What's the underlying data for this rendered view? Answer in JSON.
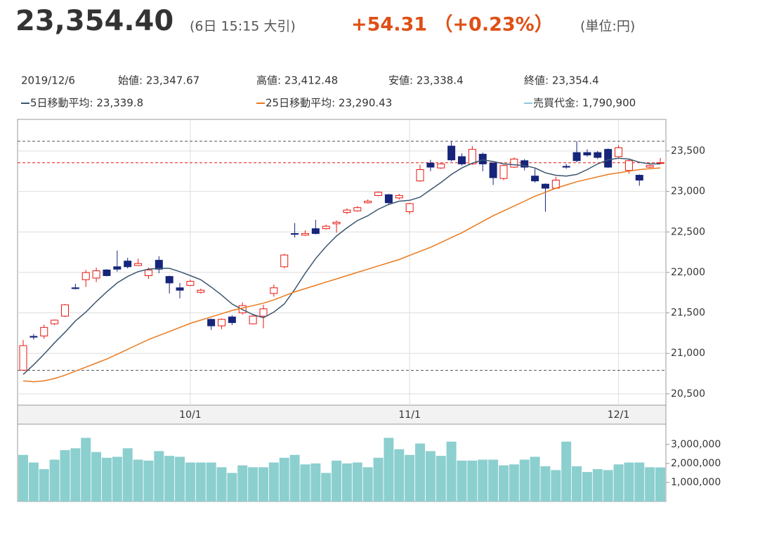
{
  "header": {
    "price": "23,354.40",
    "time": "(6日 15:15 大引)",
    "change": "+54.31 （+0.23%）",
    "unit": "(単位:円)"
  },
  "info": [
    "2019/12/6",
    "始値: 23,347.67",
    "高値: 23,412.48",
    "安値: 23,338.4",
    "終値: 23,354.4"
  ],
  "chart_data": [
    {
      "type": "candlestick",
      "categories": [
        null,
        null,
        null,
        null,
        null,
        null,
        null,
        null,
        null,
        null,
        null,
        null,
        null,
        null,
        null,
        null,
        "10/1",
        null,
        null,
        null,
        null,
        null,
        null,
        null,
        null,
        null,
        null,
        null,
        null,
        null,
        null,
        null,
        null,
        null,
        null,
        null,
        null,
        "11/1",
        null,
        null,
        null,
        null,
        null,
        null,
        null,
        null,
        null,
        null,
        null,
        null,
        null,
        null,
        null,
        null,
        null,
        null,
        null,
        "12/1",
        null,
        null,
        null,
        null
      ],
      "open": [
        20792,
        21210,
        21215,
        21365,
        21460,
        21810,
        21910,
        21930,
        22030,
        22070,
        22140,
        22085,
        21960,
        22150,
        21950,
        21810,
        21840,
        21755,
        21420,
        21340,
        21450,
        21500,
        21365,
        21460,
        21740,
        22070,
        22480,
        22460,
        22540,
        22540,
        22600,
        22740,
        22760,
        22860,
        22950,
        22960,
        22920,
        22750,
        23130,
        23350,
        23290,
        23560,
        23430,
        23340,
        23460,
        23350,
        23160,
        23300,
        23380,
        23190,
        23090,
        23040,
        23310,
        23480,
        23480,
        23480,
        23520,
        23430,
        23260,
        23200,
        23300,
        23347.67
      ],
      "high": [
        21165,
        21240,
        21355,
        21420,
        21610,
        21860,
        22030,
        22060,
        22040,
        22270,
        22180,
        22170,
        22060,
        22200,
        21960,
        21870,
        21910,
        21800,
        21430,
        21430,
        21470,
        21630,
        21480,
        21600,
        21850,
        22230,
        22610,
        22520,
        22650,
        22590,
        22640,
        22790,
        22820,
        22900,
        23000,
        22970,
        22970,
        22860,
        23330,
        23390,
        23350,
        23620,
        23470,
        23560,
        23480,
        23360,
        23330,
        23420,
        23400,
        23280,
        23100,
        23180,
        23340,
        23620,
        23520,
        23500,
        23530,
        23570,
        23400,
        23210,
        23330,
        23412.48
      ],
      "low": [
        20790,
        21170,
        21180,
        21350,
        21450,
        21790,
        21820,
        21880,
        21950,
        22010,
        22050,
        22080,
        21920,
        21990,
        21740,
        21680,
        21830,
        21740,
        21290,
        21300,
        21350,
        21480,
        21360,
        21310,
        21700,
        22050,
        22430,
        22450,
        22470,
        22530,
        22490,
        22720,
        22750,
        22850,
        22940,
        22840,
        22900,
        22720,
        23120,
        23250,
        23280,
        23370,
        23320,
        23330,
        23250,
        23080,
        23140,
        23290,
        23260,
        23110,
        22750,
        23030,
        23280,
        23360,
        23430,
        23400,
        23290,
        23420,
        23220,
        23070,
        23290,
        23338.4
      ],
      "close": [
        21096,
        21200,
        21320,
        21410,
        21600,
        21800,
        21998,
        22020,
        21960,
        22040,
        22070,
        22110,
        22030,
        22040,
        21870,
        21780,
        21890,
        21780,
        21340,
        21420,
        21380,
        21590,
        21460,
        21550,
        21810,
        22215,
        22470,
        22480,
        22480,
        22570,
        22620,
        22770,
        22800,
        22880,
        22990,
        22860,
        22950,
        22850,
        23270,
        23300,
        23340,
        23390,
        23340,
        23520,
        23340,
        23170,
        23320,
        23400,
        23300,
        23130,
        23040,
        23140,
        23300,
        23380,
        23450,
        23420,
        23300,
        23540,
        23380,
        23140,
        23320,
        23354.4
      ],
      "up_color": "#e8170f",
      "down_color": "#16257a",
      "series": [
        {
          "name": "5日移動平均: 23,339.8",
          "color": "#3b5670",
          "values": [
            20740,
            20860,
            20990,
            21130,
            21260,
            21400,
            21510,
            21640,
            21760,
            21870,
            21950,
            22010,
            22040,
            22050,
            22050,
            22010,
            21960,
            21910,
            21820,
            21720,
            21610,
            21540,
            21480,
            21440,
            21510,
            21610,
            21790,
            21990,
            22170,
            22320,
            22450,
            22550,
            22640,
            22700,
            22780,
            22840,
            22880,
            22890,
            22930,
            23020,
            23110,
            23210,
            23290,
            23350,
            23390,
            23370,
            23340,
            23330,
            23320,
            23290,
            23230,
            23200,
            23190,
            23210,
            23270,
            23340,
            23390,
            23410,
            23400,
            23360,
            23340,
            23339.8
          ]
        },
        {
          "name": "25日移動平均: 23,290.43",
          "color": "#ea7a1e",
          "values": [
            20660,
            20650,
            20660,
            20690,
            20730,
            20780,
            20830,
            20880,
            20930,
            20990,
            21050,
            21110,
            21170,
            21220,
            21270,
            21320,
            21370,
            21410,
            21450,
            21490,
            21530,
            21560,
            21590,
            21620,
            21660,
            21710,
            21760,
            21800,
            21840,
            21880,
            21920,
            21960,
            22000,
            22040,
            22080,
            22120,
            22160,
            22210,
            22260,
            22310,
            22370,
            22430,
            22490,
            22560,
            22630,
            22700,
            22760,
            22820,
            22880,
            22940,
            22990,
            23040,
            23080,
            23120,
            23150,
            23180,
            23210,
            23230,
            23250,
            23270,
            23280,
            23290.43
          ]
        }
      ],
      "reference_lines": [
        20790,
        23620
      ],
      "ylim": [
        20360,
        23890
      ],
      "yticks": [
        {
          "value": 20500,
          "label": "20,500"
        },
        {
          "value": 21000,
          "label": "21,000"
        },
        {
          "value": 21500,
          "label": "21,500"
        },
        {
          "value": 22000,
          "label": "22,000"
        },
        {
          "value": 22500,
          "label": "22,500"
        },
        {
          "value": 23000,
          "label": "23,000"
        },
        {
          "value": 23500,
          "label": "23,500"
        }
      ],
      "grid": true
    },
    {
      "type": "bar",
      "series": [
        {
          "name": "売買代金: 1,790,900",
          "color": "#8ccfcf",
          "values": [
            2450000,
            2050000,
            1700000,
            2200000,
            2700000,
            2800000,
            3350000,
            2600000,
            2300000,
            2350000,
            2800000,
            2200000,
            2150000,
            2650000,
            2400000,
            2350000,
            2050000,
            2050000,
            2050000,
            1800000,
            1500000,
            1900000,
            1800000,
            1800000,
            2050000,
            2300000,
            2450000,
            1950000,
            2000000,
            1500000,
            2150000,
            2000000,
            2050000,
            1800000,
            2300000,
            3350000,
            2750000,
            2450000,
            3050000,
            2650000,
            2400000,
            3150000,
            2150000,
            2150000,
            2200000,
            2200000,
            1900000,
            1950000,
            2200000,
            2350000,
            1850000,
            1650000,
            3150000,
            1850000,
            1550000,
            1700000,
            1650000,
            1950000,
            2050000,
            2050000,
            1800000,
            1790900
          ]
        }
      ],
      "legend_color": "#8ec9e0",
      "ylim": [
        0,
        4070000
      ],
      "yticks": [
        {
          "value": 1000000,
          "label": "1,000,000"
        },
        {
          "value": 2000000,
          "label": "2,000,000"
        },
        {
          "value": 3000000,
          "label": "3,000,000"
        }
      ]
    }
  ]
}
